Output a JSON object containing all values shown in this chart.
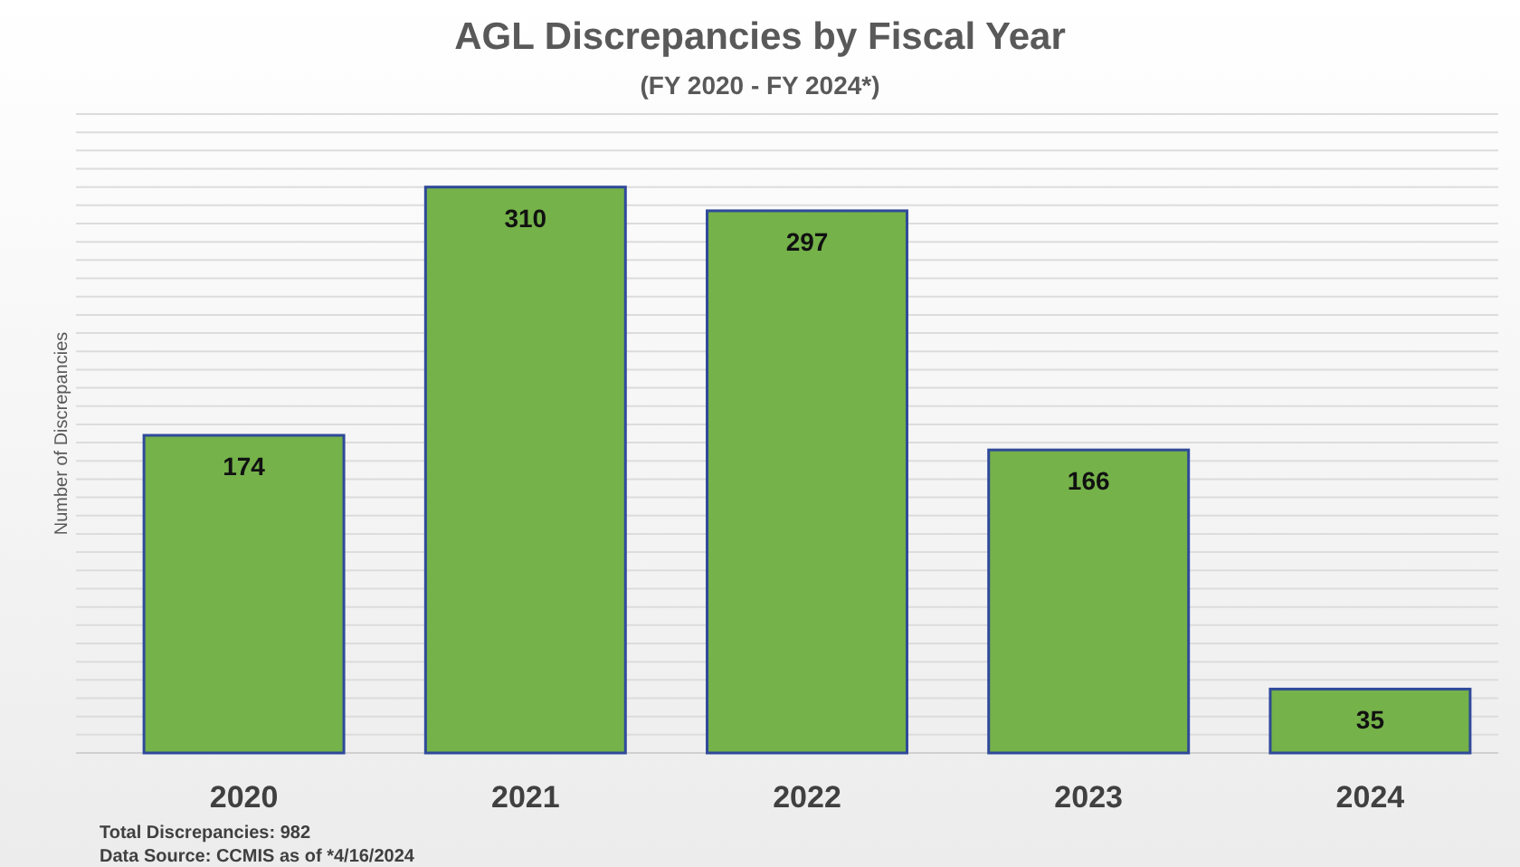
{
  "chart_data": {
    "type": "bar",
    "title": "AGL Discrepancies by Fiscal Year",
    "subtitle": "(FY 2020 - FY 2024*)",
    "ylabel": "Number of Discrepancies",
    "categories": [
      "2020",
      "2021",
      "2022",
      "2023",
      "2024"
    ],
    "values": [
      174,
      310,
      297,
      166,
      35
    ],
    "color": "#75b24a",
    "data_labels": true,
    "ylim": [
      0,
      350
    ],
    "yticks": [
      {
        "value": 0,
        "label": null
      },
      {
        "value": 10,
        "label": null
      },
      {
        "value": 20,
        "label": null
      },
      {
        "value": 30,
        "label": null
      },
      {
        "value": 40,
        "label": null
      },
      {
        "value": 50,
        "label": null
      },
      {
        "value": 60,
        "label": null
      },
      {
        "value": 70,
        "label": null
      },
      {
        "value": 80,
        "label": null
      },
      {
        "value": 90,
        "label": null
      },
      {
        "value": 100,
        "label": null
      },
      {
        "value": 110,
        "label": null
      },
      {
        "value": 120,
        "label": null
      },
      {
        "value": 130,
        "label": null
      },
      {
        "value": 140,
        "label": null
      },
      {
        "value": 150,
        "label": null
      },
      {
        "value": 160,
        "label": null
      },
      {
        "value": 170,
        "label": null
      },
      {
        "value": 180,
        "label": null
      },
      {
        "value": 190,
        "label": null
      },
      {
        "value": 200,
        "label": null
      },
      {
        "value": 210,
        "label": null
      },
      {
        "value": 220,
        "label": null
      },
      {
        "value": 230,
        "label": null
      },
      {
        "value": 240,
        "label": null
      },
      {
        "value": 250,
        "label": null
      },
      {
        "value": 260,
        "label": null
      },
      {
        "value": 270,
        "label": null
      },
      {
        "value": 280,
        "label": null
      },
      {
        "value": 290,
        "label": null
      },
      {
        "value": 300,
        "label": null
      },
      {
        "value": 310,
        "label": null
      },
      {
        "value": 320,
        "label": null
      },
      {
        "value": 330,
        "label": null
      },
      {
        "value": 340,
        "label": null
      },
      {
        "value": 350,
        "label": null
      }
    ],
    "grid": "y",
    "tick_labels": "x",
    "annotations": [
      "Total Discrepancies:  982",
      "Data Source:  CCMIS as of *4/16/2024"
    ]
  }
}
